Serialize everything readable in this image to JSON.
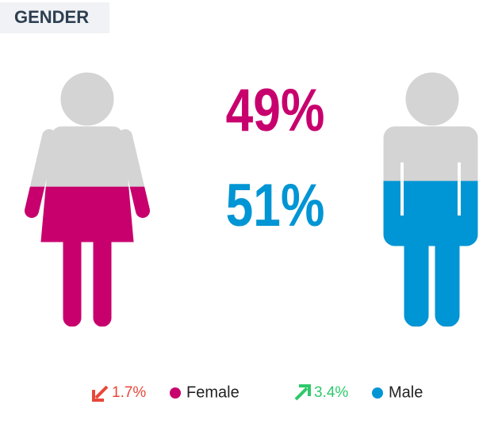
{
  "chart_data": {
    "type": "pictogram",
    "title": "GENDER",
    "base_color": "#d4d4d4",
    "series": [
      {
        "name": "Female",
        "color": "#c8006e",
        "values": [
          49
        ],
        "value_labels": [
          "49%"
        ],
        "change": {
          "value": 1.7,
          "label": "1.7%",
          "direction": "down",
          "color": "#e8473a"
        }
      },
      {
        "name": "Male",
        "color": "#0095d4",
        "values": [
          51
        ],
        "value_labels": [
          "51%"
        ],
        "change": {
          "value": 3.4,
          "label": "3.4%",
          "direction": "up",
          "color": "#2ec96b"
        }
      }
    ]
  }
}
